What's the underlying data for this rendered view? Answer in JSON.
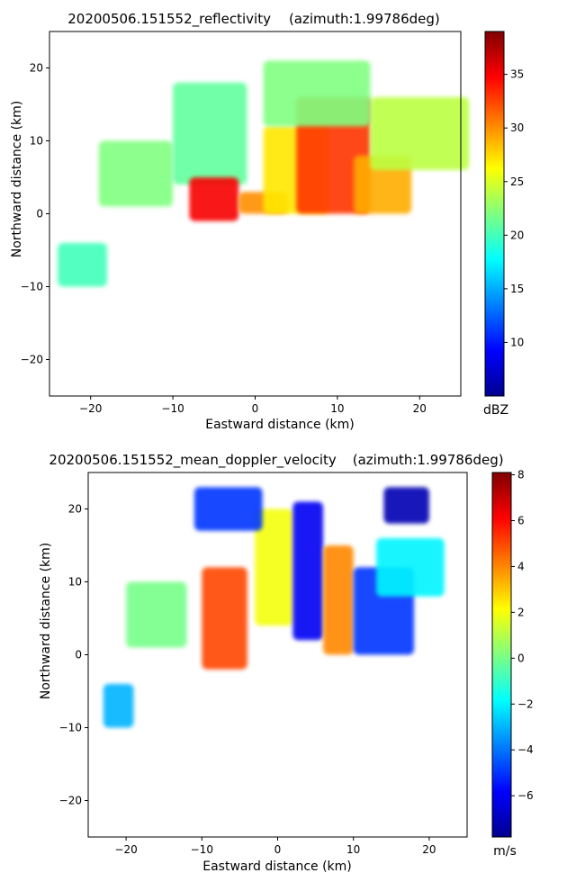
{
  "chart_data": [
    {
      "type": "heatmap",
      "title": "20200506.151552_reflectivity",
      "title_note": "(azimuth:1.99786deg)",
      "xlabel": "Eastward distance (km)",
      "ylabel": "Northward distance (km)",
      "xlim": [
        -25,
        25
      ],
      "ylim": [
        -25,
        25
      ],
      "xticks": [
        -20,
        -10,
        0,
        10,
        20
      ],
      "yticks": [
        -20,
        -10,
        0,
        10,
        20
      ],
      "colorbar": {
        "label": "dBZ",
        "colormap": "jet",
        "range": [
          5,
          39
        ],
        "ticks": [
          10,
          15,
          20,
          25,
          30,
          35
        ]
      },
      "regions": [
        {
          "x": [
            -19,
            -10
          ],
          "y": [
            1,
            10
          ],
          "value": 22
        },
        {
          "x": [
            -10,
            -1
          ],
          "y": [
            4,
            18
          ],
          "value": 21
        },
        {
          "x": [
            -8,
            -2
          ],
          "y": [
            -1,
            5
          ],
          "value": 35
        },
        {
          "x": [
            -2,
            4
          ],
          "y": [
            0,
            3
          ],
          "value": 30
        },
        {
          "x": [
            1,
            9
          ],
          "y": [
            0,
            12
          ],
          "value": 27
        },
        {
          "x": [
            5,
            14
          ],
          "y": [
            0,
            16
          ],
          "value": 33
        },
        {
          "x": [
            12,
            19
          ],
          "y": [
            0,
            8
          ],
          "value": 29
        },
        {
          "x": [
            14,
            26
          ],
          "y": [
            6,
            16
          ],
          "value": 24
        },
        {
          "x": [
            1,
            14
          ],
          "y": [
            12,
            21
          ],
          "value": 22
        },
        {
          "x": [
            -24,
            -18
          ],
          "y": [
            -10,
            -4
          ],
          "value": 20
        }
      ]
    },
    {
      "type": "heatmap",
      "title": "20200506.151552_mean_doppler_velocity",
      "title_note": "(azimuth:1.99786deg)",
      "xlabel": "Eastward distance (km)",
      "ylabel": "Northward distance (km)",
      "xlim": [
        -25,
        25
      ],
      "ylim": [
        -25,
        25
      ],
      "xticks": [
        -20,
        -10,
        0,
        10,
        20
      ],
      "yticks": [
        -20,
        -10,
        0,
        10,
        20
      ],
      "colorbar": {
        "label": "m/s",
        "colormap": "jet",
        "range": [
          -7.8,
          8.1
        ],
        "ticks": [
          -6,
          -4,
          -2,
          0,
          2,
          4,
          6,
          8
        ]
      },
      "regions": [
        {
          "x": [
            -20,
            -12
          ],
          "y": [
            1,
            10
          ],
          "value": 0
        },
        {
          "x": [
            -10,
            -4
          ],
          "y": [
            -2,
            12
          ],
          "value": 5
        },
        {
          "x": [
            -3,
            2
          ],
          "y": [
            4,
            20
          ],
          "value": 2
        },
        {
          "x": [
            2,
            6
          ],
          "y": [
            2,
            21
          ],
          "value": -6
        },
        {
          "x": [
            6,
            10
          ],
          "y": [
            0,
            15
          ],
          "value": 4
        },
        {
          "x": [
            10,
            18
          ],
          "y": [
            0,
            12
          ],
          "value": -5
        },
        {
          "x": [
            13,
            22
          ],
          "y": [
            8,
            16
          ],
          "value": -2
        },
        {
          "x": [
            -11,
            -2
          ],
          "y": [
            17,
            23
          ],
          "value": -5
        },
        {
          "x": [
            14,
            20
          ],
          "y": [
            18,
            23
          ],
          "value": -7
        },
        {
          "x": [
            -23,
            -19
          ],
          "y": [
            -10,
            -4
          ],
          "value": -3
        }
      ]
    }
  ]
}
